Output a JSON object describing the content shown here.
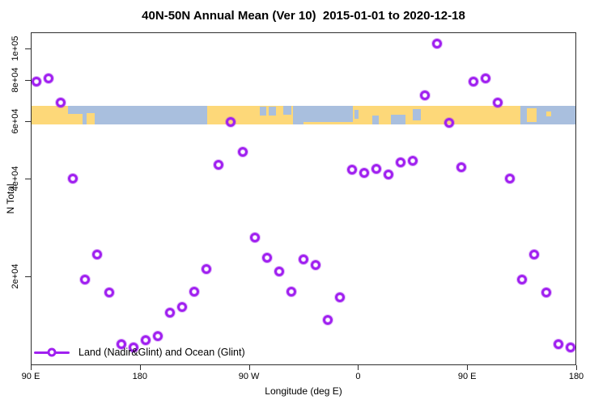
{
  "title": "40N-50N Annual Mean (Ver 10)  2015-01-01 to 2020-12-18",
  "legend": {
    "label": "Land (Nadir&Glint) and Ocean (Glint)"
  },
  "colors": {
    "marker": "#A020F0",
    "land": "#FDD879",
    "ocean": "#A9BFDE",
    "frame": "#2e2e2e"
  },
  "chart_data": {
    "type": "scatter",
    "title": "40N-50N Annual Mean (Ver 10)  2015-01-01 to 2020-12-18",
    "xlabel": "Longitude (deg E)",
    "ylabel": "N Total",
    "legend_entry": "Land (Nadir&Glint) and Ocean (Glint)",
    "legend_position": "bottom-left",
    "grid": false,
    "x_axis": {
      "min": 90,
      "max": 540,
      "note": "longitude deg E increasing eastward and wrapping: 90E,180,90W(270),0(360),90E(450),180(540); data from 90E-180 repeats at both ends",
      "ticks": [
        {
          "value": 90,
          "label": "90 E"
        },
        {
          "value": 180,
          "label": "180"
        },
        {
          "value": 270,
          "label": "90 W"
        },
        {
          "value": 360,
          "label": "0"
        },
        {
          "value": 450,
          "label": "90 E"
        },
        {
          "value": 540,
          "label": "180"
        }
      ]
    },
    "y_axis": {
      "scale": "log",
      "min": 10700,
      "max": 112000,
      "ticks": [
        {
          "value": 100000,
          "label": "1e+05"
        },
        {
          "value": 80000,
          "label": "8e+04"
        },
        {
          "value": 60000,
          "label": "6e+04"
        },
        {
          "value": 40000,
          "label": "4e+04"
        },
        {
          "value": 20000,
          "label": "2e+04"
        }
      ]
    },
    "series": [
      {
        "name": "Land (Nadir&Glint) and Ocean (Glint)",
        "marker": "open-circle",
        "color": "#A020F0",
        "points": [
          [
            95,
            79300
          ],
          [
            105,
            81100
          ],
          [
            115,
            68400
          ],
          [
            125,
            40000
          ],
          [
            135,
            19600
          ],
          [
            145,
            23300
          ],
          [
            155,
            17900
          ],
          [
            165,
            12400
          ],
          [
            175,
            12100
          ],
          [
            185,
            12800
          ],
          [
            195,
            13100
          ],
          [
            205,
            15500
          ],
          [
            215,
            16100
          ],
          [
            225,
            18000
          ],
          [
            235,
            21100
          ],
          [
            245,
            44000
          ],
          [
            255,
            59400
          ],
          [
            265,
            48100
          ],
          [
            275,
            26400
          ],
          [
            285,
            22900
          ],
          [
            295,
            20700
          ],
          [
            305,
            18000
          ],
          [
            315,
            22600
          ],
          [
            325,
            21700
          ],
          [
            335,
            14700
          ],
          [
            345,
            17300
          ],
          [
            355,
            42500
          ],
          [
            365,
            41500
          ],
          [
            375,
            42800
          ],
          [
            385,
            41000
          ],
          [
            395,
            44700
          ],
          [
            405,
            45200
          ],
          [
            415,
            71900
          ],
          [
            425,
            103500
          ],
          [
            435,
            59300
          ],
          [
            445,
            43200
          ],
          [
            455,
            79300
          ],
          [
            465,
            81100
          ],
          [
            475,
            68400
          ],
          [
            485,
            40000
          ],
          [
            495,
            19600
          ],
          [
            505,
            23300
          ],
          [
            515,
            17900
          ],
          [
            525,
            12400
          ],
          [
            535,
            12100
          ]
        ]
      }
    ],
    "map_band": {
      "description": "40N-50N world-map strip overlaid across plot; land=yellow, ocean=blue",
      "top_value": 66800,
      "bottom_value": 58600,
      "land_color": "#FDD879",
      "ocean_color": "#A9BFDE",
      "ocean_segments": [
        {
          "from": 121,
          "to": 133,
          "v": [
            0,
            0.45
          ]
        },
        {
          "from": 133,
          "to": 235.5,
          "v": [
            0,
            1
          ]
        },
        {
          "from": 279,
          "to": 284.5,
          "v": [
            0.08,
            0.55
          ]
        },
        {
          "from": 286,
          "to": 292,
          "v": [
            0.08,
            0.55
          ]
        },
        {
          "from": 298,
          "to": 305,
          "v": [
            0,
            0.5
          ]
        },
        {
          "from": 306.5,
          "to": 356,
          "v": [
            0,
            1
          ]
        },
        {
          "from": 357,
          "to": 360.5,
          "v": [
            0.25,
            0.7
          ]
        },
        {
          "from": 372,
          "to": 377,
          "v": [
            0.55,
            1
          ]
        },
        {
          "from": 387,
          "to": 399,
          "v": [
            0.5,
            1
          ]
        },
        {
          "from": 405,
          "to": 412,
          "v": [
            0.2,
            0.8
          ]
        },
        {
          "from": 494,
          "to": 540,
          "v": [
            0,
            1
          ]
        }
      ],
      "land_patches": [
        {
          "from": 136,
          "to": 143,
          "v": [
            0.4,
            1
          ]
        },
        {
          "from": 315,
          "to": 356,
          "v": [
            0.88,
            1
          ]
        },
        {
          "from": 499,
          "to": 507,
          "v": [
            0.15,
            0.9
          ]
        },
        {
          "from": 515,
          "to": 519,
          "v": [
            0.3,
            0.6
          ]
        }
      ]
    }
  }
}
